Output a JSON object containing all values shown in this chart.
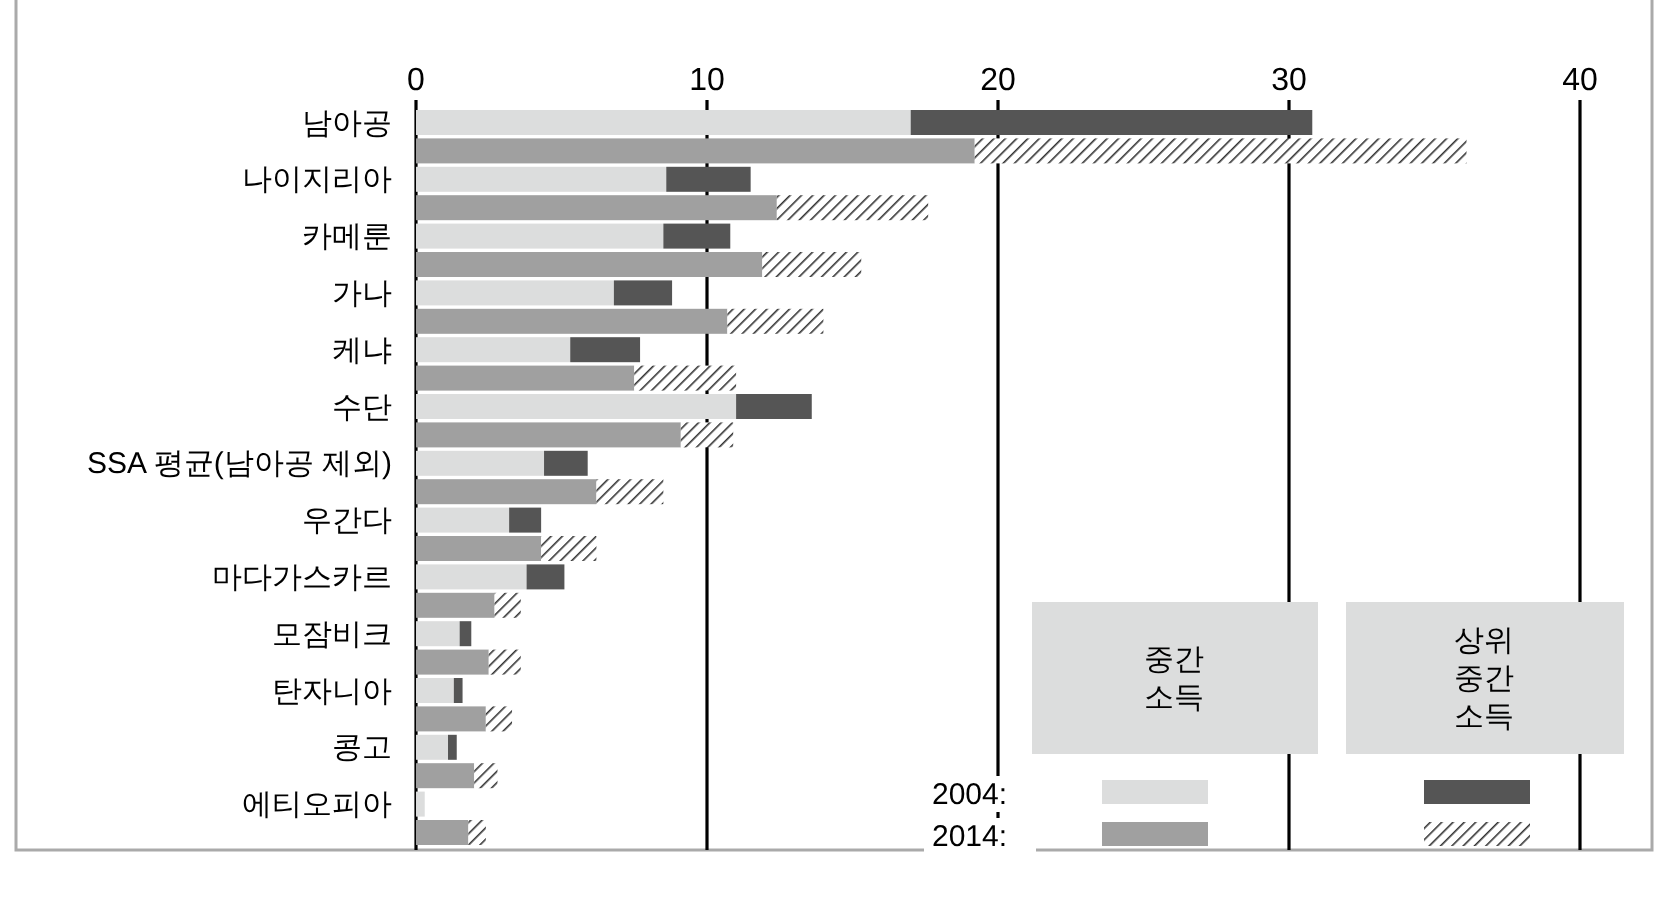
{
  "chart_data": {
    "type": "bar",
    "orientation": "horizontal",
    "stacked": true,
    "categories": [
      "남아공",
      null,
      "나이지리아",
      null,
      "카메룬",
      null,
      "가나",
      null,
      "케냐",
      null,
      "수단",
      null,
      "SSA 평균(남아공 제외)",
      null,
      "우간다",
      null,
      "마다가스카르",
      null,
      "모잠비크",
      null,
      "탄자니아",
      null,
      "콩고",
      null,
      "에티오피아",
      null
    ],
    "series": [
      {
        "colors": [
          "#dcdddd",
          "#a0a0a0",
          "#dcdddd",
          "#a0a0a0",
          "#dcdddd",
          "#a0a0a0",
          "#dcdddd",
          "#a0a0a0",
          "#dcdddd",
          "#a0a0a0",
          "#dcdddd",
          "#a0a0a0",
          "#dcdddd",
          "#a0a0a0",
          "#dcdddd",
          "#a0a0a0",
          "#dcdddd",
          "#a0a0a0",
          "#dcdddd",
          "#a0a0a0",
          "#dcdddd",
          "#a0a0a0",
          "#dcdddd",
          "#a0a0a0",
          "#dcdddd",
          "#a0a0a0"
        ],
        "values": [
          17.0,
          19.2,
          8.6,
          12.4,
          8.5,
          11.9,
          6.8,
          10.7,
          5.3,
          7.5,
          11.0,
          9.1,
          4.4,
          6.2,
          3.2,
          4.3,
          3.8,
          2.7,
          1.5,
          2.5,
          1.3,
          2.4,
          1.1,
          2.0,
          0.3,
          1.8
        ]
      },
      {
        "color": "#555555",
        "values": [
          13.8,
          null,
          2.9,
          null,
          2.3,
          null,
          2.0,
          null,
          2.4,
          null,
          2.6,
          null,
          1.5,
          null,
          1.1,
          null,
          1.3,
          null,
          0.4,
          null,
          0.3,
          null,
          0.3,
          null,
          0,
          null
        ]
      },
      {
        "color": "#333333",
        "values": [
          null,
          16.9,
          null,
          5.2,
          null,
          3.4,
          null,
          3.3,
          null,
          3.5,
          null,
          1.8,
          null,
          2.3,
          null,
          1.9,
          null,
          0.9,
          null,
          1.1,
          null,
          0.9,
          null,
          0.8,
          null,
          0.6
        ]
      }
    ],
    "xlim": [
      0,
      40
    ],
    "xticks": [
      0,
      10,
      20,
      30,
      40
    ],
    "grid": "x",
    "annotations": [
      "2004:",
      "2014:",
      "중간\n소득",
      "상위\n중간\n소득"
    ]
  }
}
